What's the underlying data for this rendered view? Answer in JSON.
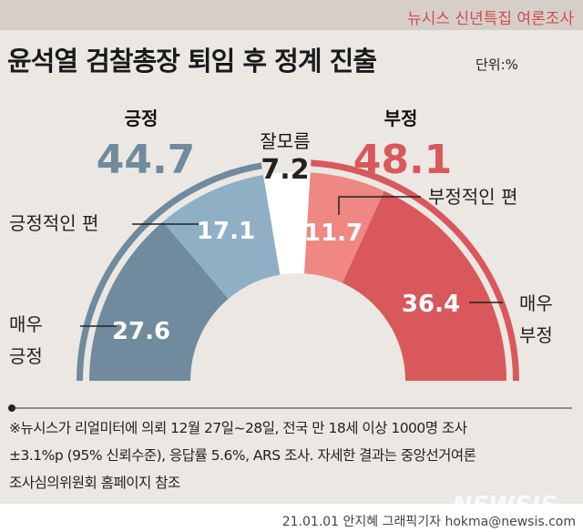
{
  "header": {
    "brand": "뉴시스 신년특집 여론조사",
    "title": "윤석열 검찰총장 퇴임 후 정계 진출",
    "unit": "단위:%"
  },
  "chart_data": {
    "type": "pie",
    "shape": "semicircle-donut",
    "title": "윤석열 검찰총장 퇴임 후 정계 진출",
    "groups": [
      {
        "name": "긍정",
        "value": 44.7,
        "color": "#6f8b9d"
      },
      {
        "name": "잘모름",
        "value": 7.2,
        "color": "#222222"
      },
      {
        "name": "부정",
        "value": 48.1,
        "color": "#d9585c"
      }
    ],
    "categories": [
      "매우 긍정",
      "긍정적인 편",
      "잘모름",
      "부정적인 편",
      "매우 부정"
    ],
    "values": [
      27.6,
      17.1,
      7.2,
      11.7,
      36.4
    ],
    "colors": [
      "#6f8b9d",
      "#8fb0c4",
      "#ffffff",
      "#ef8783",
      "#d9585c"
    ]
  },
  "labels": {
    "very_pos_1": "매우",
    "very_pos_2": "긍정",
    "somewhat_pos": "긍정적인 편",
    "somewhat_neg": "부정적인 편",
    "very_neg_1": "매우",
    "very_neg_2": "부정"
  },
  "notes": [
    "※뉴시스가 리얼미터에 의뢰 12월 27일~28일, 전국 만 18세 이상 1000명 조사",
    "±3.1%p (95% 신뢰수준), 응답률 5.6%, ARS 조사. 자세한 결과는 중앙선거여론",
    "조사심의위원회 홈페이지 참조"
  ],
  "footer": {
    "credit": "21.01.01 안지혜 그래픽기자 hokma@newsis.com",
    "watermark": "NEWSIS"
  }
}
